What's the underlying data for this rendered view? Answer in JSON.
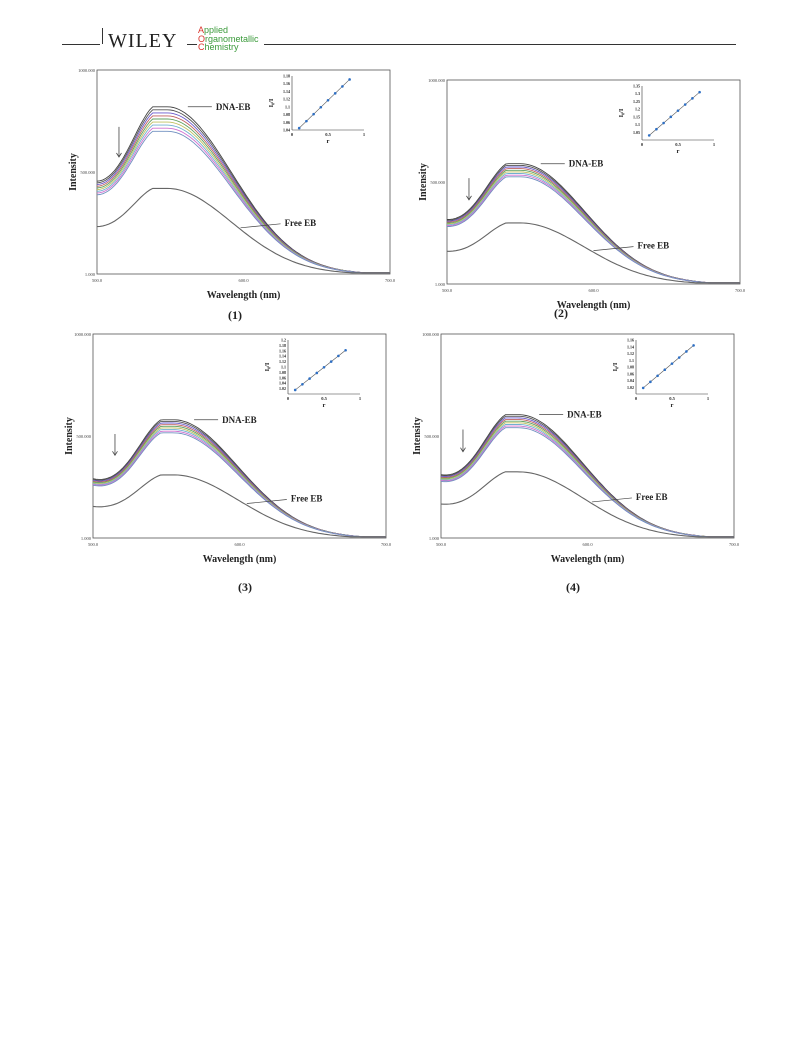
{
  "header": {
    "publisher": "WILEY",
    "journal_lines": [
      {
        "cap": "A",
        "rest": "pplied"
      },
      {
        "cap": "O",
        "rest": "rganometallic"
      },
      {
        "cap": "C",
        "rest": "hemistry"
      }
    ],
    "colors": {
      "cap": "#d9332b",
      "rest": "#3a9a3a"
    }
  },
  "chart_data": [
    {
      "type": "line",
      "caption": "(1)",
      "xlabel": "Wavelength (nm)",
      "ylabel": "Intensity",
      "x_ticks": [
        "500.0",
        "600.0",
        "700.0"
      ],
      "y_ticks": [
        "1.000",
        "500.000",
        "1000.000"
      ],
      "xlim": [
        500,
        700
      ],
      "ylim": [
        1,
        1000
      ],
      "annotations": {
        "top": "DNA-EB",
        "bottom": "Free EB"
      },
      "peak_x": 548,
      "spectra_peaks": [
        820,
        805,
        790,
        775,
        760,
        745,
        730,
        715,
        700
      ],
      "free_peak": 420,
      "inset": {
        "xlabel": "r",
        "ylabel": "I₀/I",
        "x_ticks": [
          "0",
          "0.5",
          "1"
        ],
        "y_ticks": [
          "1.04",
          "1.06",
          "1.08",
          "1.1",
          "1.12",
          "1.14",
          "1.16",
          "1.18"
        ],
        "xlim": [
          0,
          1
        ],
        "ylim": [
          1.04,
          1.18
        ],
        "points": [
          [
            0.1,
            1.045
          ],
          [
            0.2,
            1.063
          ],
          [
            0.3,
            1.081
          ],
          [
            0.4,
            1.099
          ],
          [
            0.5,
            1.117
          ],
          [
            0.6,
            1.135
          ],
          [
            0.7,
            1.153
          ],
          [
            0.8,
            1.171
          ]
        ]
      }
    },
    {
      "type": "line",
      "caption": "(2)",
      "xlabel": "Wavelength (nm)",
      "ylabel": "Intensity",
      "x_ticks": [
        "500.0",
        "600.0",
        "700.0"
      ],
      "y_ticks": [
        "1.000",
        "500.000",
        "1000.000"
      ],
      "xlim": [
        500,
        700
      ],
      "ylim": [
        1,
        1000
      ],
      "annotations": {
        "top": "DNA-EB",
        "bottom": "Free EB"
      },
      "peak_x": 550,
      "spectra_peaks": [
        590,
        582,
        574,
        566,
        558,
        550,
        542,
        534,
        526
      ],
      "free_peak": 300,
      "inset": {
        "xlabel": "r",
        "ylabel": "I₀/I",
        "x_ticks": [
          "0",
          "0.5",
          "1"
        ],
        "y_ticks": [
          "1.05",
          "1.1",
          "1.15",
          "1.2",
          "1.25",
          "1.3",
          "1.35"
        ],
        "xlim": [
          0,
          1
        ],
        "ylim": [
          1.0,
          1.35
        ],
        "points": [
          [
            0.1,
            1.03
          ],
          [
            0.2,
            1.07
          ],
          [
            0.3,
            1.11
          ],
          [
            0.4,
            1.15
          ],
          [
            0.5,
            1.19
          ],
          [
            0.6,
            1.23
          ],
          [
            0.7,
            1.27
          ],
          [
            0.8,
            1.31
          ]
        ]
      }
    },
    {
      "type": "line",
      "caption": "(3)",
      "xlabel": "Wavelength (nm)",
      "ylabel": "Intensity",
      "x_ticks": [
        "500.0",
        "600.0",
        "700.0"
      ],
      "y_ticks": [
        "1.000",
        "500.000",
        "1000.000"
      ],
      "xlim": [
        500,
        700
      ],
      "ylim": [
        1,
        1000
      ],
      "annotations": {
        "top": "DNA-EB",
        "bottom": "Free EB"
      },
      "peak_x": 555,
      "spectra_peaks": [
        580,
        572,
        564,
        556,
        548,
        540,
        532,
        524,
        516
      ],
      "free_peak": 310,
      "inset": {
        "xlabel": "r",
        "ylabel": "I₀/I",
        "x_ticks": [
          "0",
          "0.5",
          "1"
        ],
        "y_ticks": [
          "1.02",
          "1.04",
          "1.06",
          "1.08",
          "1.1",
          "1.12",
          "1.14",
          "1.16",
          "1.18",
          "1.2"
        ],
        "xlim": [
          0,
          1
        ],
        "ylim": [
          1.0,
          1.2
        ],
        "points": [
          [
            0.1,
            1.015
          ],
          [
            0.2,
            1.036
          ],
          [
            0.3,
            1.057
          ],
          [
            0.4,
            1.078
          ],
          [
            0.5,
            1.099
          ],
          [
            0.6,
            1.12
          ],
          [
            0.7,
            1.141
          ],
          [
            0.8,
            1.162
          ]
        ]
      }
    },
    {
      "type": "line",
      "caption": "(4)",
      "xlabel": "Wavelength (nm)",
      "ylabel": "Intensity",
      "x_ticks": [
        "500.0",
        "600.0",
        "700.0"
      ],
      "y_ticks": [
        "1.000",
        "500.000",
        "1000.000"
      ],
      "xlim": [
        500,
        700
      ],
      "ylim": [
        1,
        1000
      ],
      "annotations": {
        "top": "DNA-EB",
        "bottom": "Free EB"
      },
      "peak_x": 553,
      "spectra_peaks": [
        605,
        597,
        589,
        581,
        573,
        565,
        557,
        549,
        541
      ],
      "free_peak": 325,
      "inset": {
        "xlabel": "r",
        "ylabel": "I₀/I",
        "x_ticks": [
          "0",
          "0.5",
          "1"
        ],
        "y_ticks": [
          "1.02",
          "1.04",
          "1.06",
          "1.08",
          "1.1",
          "1.12",
          "1.14",
          "1.16"
        ],
        "xlim": [
          0,
          1
        ],
        "ylim": [
          1.0,
          1.16
        ],
        "points": [
          [
            0.1,
            1.018
          ],
          [
            0.2,
            1.036
          ],
          [
            0.3,
            1.054
          ],
          [
            0.4,
            1.072
          ],
          [
            0.5,
            1.09
          ],
          [
            0.6,
            1.108
          ],
          [
            0.7,
            1.126
          ],
          [
            0.8,
            1.144
          ]
        ]
      }
    }
  ],
  "series_colors": [
    "#444444",
    "#555555",
    "#6a5acd",
    "#c06060",
    "#60a060",
    "#c0c060",
    "#70b0d0",
    "#d070d0",
    "#7090c0"
  ],
  "free_color": "#666666",
  "inset_color": "#2e6fc4"
}
